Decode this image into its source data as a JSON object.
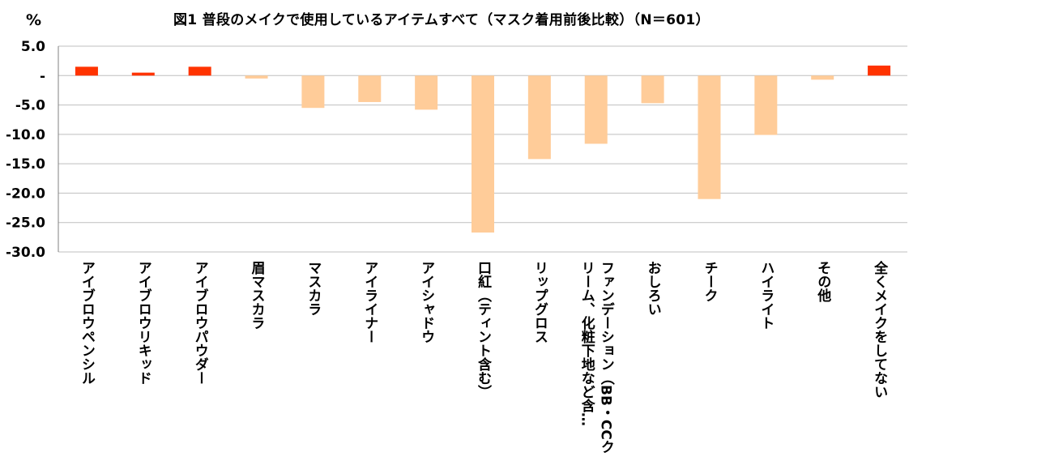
{
  "title": "図1 普段のメイクで使用しているアイテムすべて（マスク着用前後比較）（N＝601）",
  "unit": "%",
  "colors": {
    "positive": "#ff3300",
    "negative": "#ffcc99",
    "grid": "#bfbfbf",
    "axis": "#808080"
  },
  "chart_data": {
    "type": "bar",
    "title": "図1 普段のメイクで使用しているアイテムすべて（マスク着用前後比較）（N＝601）",
    "ylabel": "%",
    "ylim": [
      -30,
      5
    ],
    "yticks": [
      5,
      0,
      -5,
      -10,
      -15,
      -20,
      -25,
      -30
    ],
    "ytick_labels": [
      "5.0",
      "-",
      "-5.0",
      "-10.0",
      "-15.0",
      "-20.0",
      "-25.0",
      "-30.0"
    ],
    "grid": true,
    "categories": [
      [
        "アイブロウペンシル"
      ],
      [
        "アイブロウリキッド"
      ],
      [
        "アイブロウパウダー"
      ],
      [
        "眉マスカラ"
      ],
      [
        "マスカラ"
      ],
      [
        "アイライナー"
      ],
      [
        "アイシャドウ"
      ],
      [
        "口紅（ティント含む）"
      ],
      [
        "リップグロス"
      ],
      [
        "ファンデーション（BB・CCク",
        "リーム、化粧下地など含…"
      ],
      [
        "おしろい"
      ],
      [
        "チーク"
      ],
      [
        "ハイライト"
      ],
      [
        "その他"
      ],
      [
        "全くメイクをしてない"
      ]
    ],
    "values": [
      1.5,
      0.5,
      1.5,
      -0.5,
      -5.5,
      -4.5,
      -5.8,
      -26.7,
      -14.2,
      -11.6,
      -4.7,
      -21.0,
      -10.1,
      -0.7,
      1.7
    ]
  }
}
